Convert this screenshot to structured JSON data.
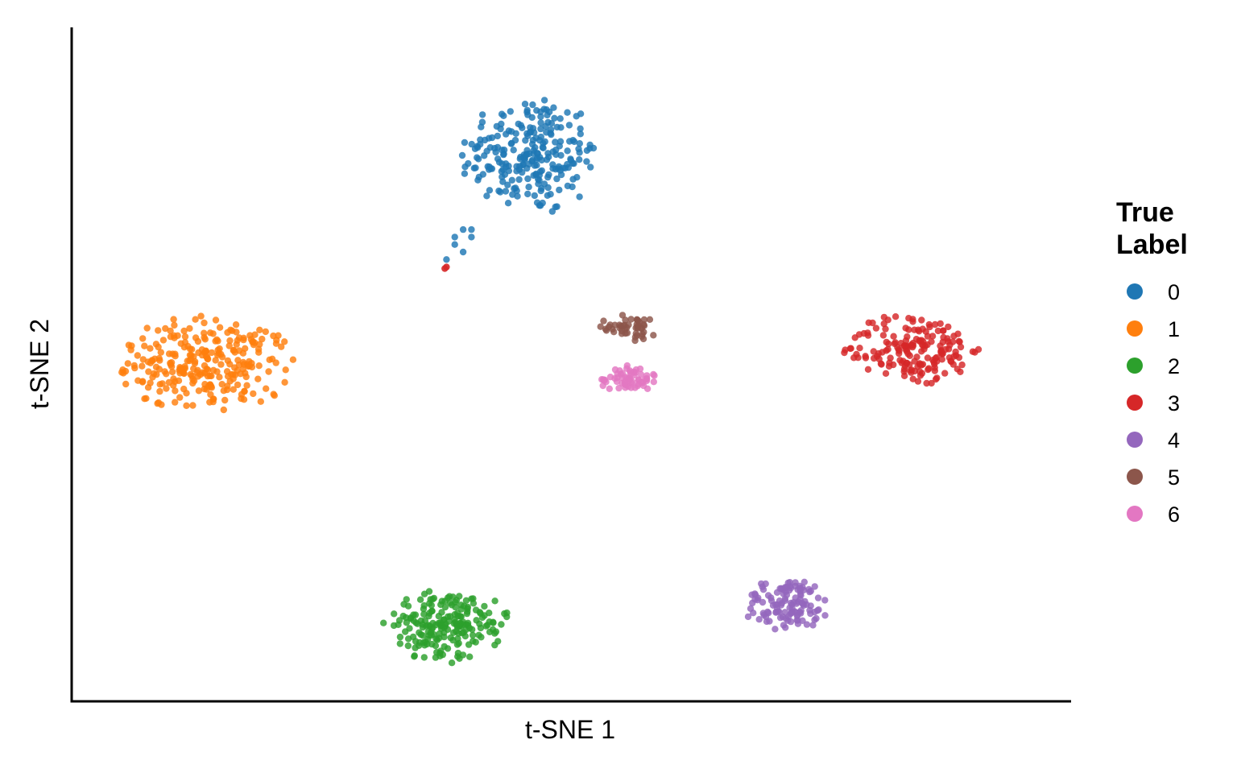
{
  "chart_data": {
    "type": "scatter",
    "title": "",
    "xlabel": "t-SNE 1",
    "ylabel": "t-SNE 2",
    "xlim": [
      -60,
      60
    ],
    "ylim": [
      -45,
      45
    ],
    "grid": false,
    "axis_ticks": false,
    "legend": {
      "title_lines": [
        "True",
        "Label"
      ],
      "placement": "right"
    },
    "series": [
      {
        "name": "0",
        "color": "#1F77B4",
        "n": 240,
        "center": [
          -5,
          28
        ],
        "spread": [
          8.5,
          8.0
        ],
        "tail": [
          [
            -13,
            18
          ],
          [
            -12,
            17
          ],
          [
            -14,
            16
          ],
          [
            -13,
            15
          ],
          [
            -15,
            14
          ],
          [
            -12,
            18
          ],
          [
            -14,
            17
          ]
        ]
      },
      {
        "name": "1",
        "color": "#FF7F0E",
        "n": 270,
        "center": [
          -44,
          0
        ],
        "spread": [
          11.0,
          6.5
        ]
      },
      {
        "name": "2",
        "color": "#2CA02C",
        "n": 200,
        "center": [
          -15,
          -35
        ],
        "spread": [
          8.0,
          5.0
        ]
      },
      {
        "name": "3",
        "color": "#D62728",
        "n": 175,
        "center": [
          41,
          2
        ],
        "spread": [
          8.5,
          5.0
        ],
        "extra_points": [
          [
            -15,
            13
          ],
          [
            -15.2,
            12.8
          ]
        ]
      },
      {
        "name": "4",
        "color": "#9467BD",
        "n": 120,
        "center": [
          26,
          -32
        ],
        "spread": [
          5.5,
          3.5
        ]
      },
      {
        "name": "5",
        "color": "#8C564B",
        "n": 48,
        "center": [
          7,
          5
        ],
        "spread": [
          3.5,
          2.0
        ]
      },
      {
        "name": "6",
        "color": "#E377C2",
        "n": 62,
        "center": [
          7,
          -2
        ],
        "spread": [
          3.5,
          2.2
        ]
      }
    ]
  }
}
